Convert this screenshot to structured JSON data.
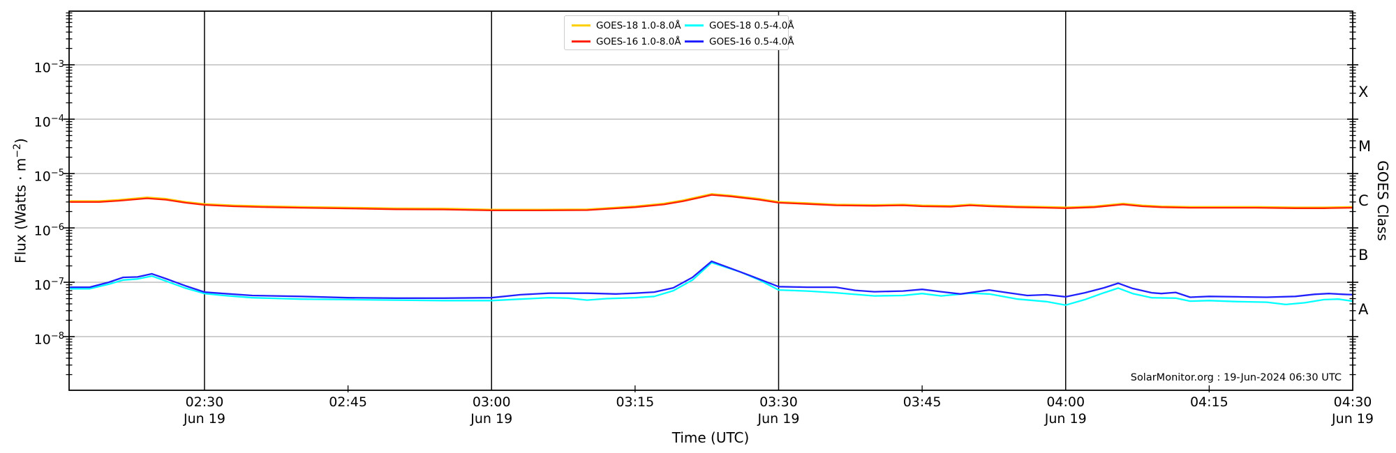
{
  "labels": {
    "xlabel": "Time (UTC)",
    "ylabel_left_prefix": "Flux (Watts · m",
    "ylabel_left_sup": "−2",
    "ylabel_left_suffix": ")",
    "ylabel_right": "GOES Class",
    "annotation": "SolarMonitor.org : 19-Jun-2024 06:30 UTC"
  },
  "chart_data": {
    "type": "line",
    "title": "",
    "xlabel": "Time (UTC)",
    "ylabel": "Flux (Watts · m^-2)",
    "ylabel_right": "GOES Class",
    "annotation": "SolarMonitor.org : 19-Jun-2024 06:30 UTC",
    "grid": "horizontal decade gridlines, vertical lines at half-hour marks",
    "legend_position": "upper center, 2 columns",
    "x_range_minutes": [
      135.85,
      270
    ],
    "y_range_exp": [
      -8.987,
      -2.013
    ],
    "x_ticks": [
      {
        "label": "02:30",
        "minutes": 150,
        "major": true,
        "date": "Jun 19"
      },
      {
        "label": "02:45",
        "minutes": 165,
        "major": false
      },
      {
        "label": "03:00",
        "minutes": 180,
        "major": true,
        "date": "Jun 19"
      },
      {
        "label": "03:15",
        "minutes": 195,
        "major": false
      },
      {
        "label": "03:30",
        "minutes": 210,
        "major": true,
        "date": "Jun 19"
      },
      {
        "label": "03:45",
        "minutes": 225,
        "major": false
      },
      {
        "label": "04:00",
        "minutes": 240,
        "major": true,
        "date": "Jun 19"
      },
      {
        "label": "04:15",
        "minutes": 255,
        "major": false
      },
      {
        "label": "04:30",
        "minutes": 270,
        "major": true,
        "date": "Jun 19"
      }
    ],
    "y_ticks": [
      {
        "base": "10",
        "sup": "−3",
        "exp": -3
      },
      {
        "base": "10",
        "sup": "−4",
        "exp": -4
      },
      {
        "base": "10",
        "sup": "−5",
        "exp": -5
      },
      {
        "base": "10",
        "sup": "−6",
        "exp": -6
      },
      {
        "base": "10",
        "sup": "−7",
        "exp": -7
      },
      {
        "base": "10",
        "sup": "−8",
        "exp": -8
      }
    ],
    "goes_classes": [
      {
        "label": "X",
        "exp": -3.5
      },
      {
        "label": "M",
        "exp": -4.5
      },
      {
        "label": "C",
        "exp": -5.5
      },
      {
        "label": "B",
        "exp": -6.5
      },
      {
        "label": "A",
        "exp": -7.5
      }
    ],
    "colors": {
      "grid": "#b0b0b0",
      "axis": "#000000",
      "vline": "#000000"
    },
    "series": [
      {
        "name": "GOES-18 1.0-8.0Å",
        "color": "#ffd000",
        "points": [
          [
            136,
            3.12e-06
          ],
          [
            139,
            3.12e-06
          ],
          [
            141,
            3.28e-06
          ],
          [
            144,
            3.64e-06
          ],
          [
            146,
            3.43e-06
          ],
          [
            148,
            3.02e-06
          ],
          [
            150,
            2.76e-06
          ],
          [
            153,
            2.6e-06
          ],
          [
            156,
            2.52e-06
          ],
          [
            160,
            2.44e-06
          ],
          [
            165,
            2.37e-06
          ],
          [
            170,
            2.29e-06
          ],
          [
            175,
            2.27e-06
          ],
          [
            180,
            2.18e-06
          ],
          [
            185,
            2.18e-06
          ],
          [
            190,
            2.2e-06
          ],
          [
            195,
            2.5e-06
          ],
          [
            198,
            2.81e-06
          ],
          [
            200,
            3.22e-06
          ],
          [
            202,
            3.85e-06
          ],
          [
            203,
            4.21e-06
          ],
          [
            205,
            3.95e-06
          ],
          [
            208,
            3.43e-06
          ],
          [
            210,
            3.02e-06
          ],
          [
            213,
            2.86e-06
          ],
          [
            216,
            2.7e-06
          ],
          [
            220,
            2.65e-06
          ],
          [
            223,
            2.7e-06
          ],
          [
            225,
            2.6e-06
          ],
          [
            228,
            2.55e-06
          ],
          [
            230,
            2.7e-06
          ],
          [
            232,
            2.6e-06
          ],
          [
            235,
            2.5e-06
          ],
          [
            238,
            2.44e-06
          ],
          [
            240,
            2.39e-06
          ],
          [
            243,
            2.5e-06
          ],
          [
            246,
            2.81e-06
          ],
          [
            248,
            2.6e-06
          ],
          [
            250,
            2.5e-06
          ],
          [
            253,
            2.44e-06
          ],
          [
            256,
            2.44e-06
          ],
          [
            260,
            2.44e-06
          ],
          [
            264,
            2.39e-06
          ],
          [
            267,
            2.39e-06
          ],
          [
            270,
            2.44e-06
          ]
        ]
      },
      {
        "name": "GOES-18 0.5-4.0Å",
        "color": "#00ffff",
        "points": [
          [
            136,
            7.6e-08
          ],
          [
            138,
            7.6e-08
          ],
          [
            140,
            9.2e-08
          ],
          [
            141.5,
            1.1e-07
          ],
          [
            143,
            1.15e-07
          ],
          [
            144.5,
            1.3e-07
          ],
          [
            146,
            1.05e-07
          ],
          [
            148,
            7.8e-08
          ],
          [
            150,
            6.2e-08
          ],
          [
            152,
            5.7e-08
          ],
          [
            155,
            5.2e-08
          ],
          [
            160,
            4.9e-08
          ],
          [
            165,
            4.8e-08
          ],
          [
            170,
            4.7e-08
          ],
          [
            175,
            4.6e-08
          ],
          [
            180,
            4.6e-08
          ],
          [
            183,
            4.9e-08
          ],
          [
            186,
            5.2e-08
          ],
          [
            188,
            5.1e-08
          ],
          [
            190,
            4.7e-08
          ],
          [
            192,
            5e-08
          ],
          [
            195,
            5.2e-08
          ],
          [
            197,
            5.5e-08
          ],
          [
            199,
            7e-08
          ],
          [
            201,
            1.1e-07
          ],
          [
            203,
            2.3e-07
          ],
          [
            206,
            1.55e-07
          ],
          [
            208,
            1.1e-07
          ],
          [
            210,
            7.2e-08
          ],
          [
            213,
            6.9e-08
          ],
          [
            216,
            6.4e-08
          ],
          [
            220,
            5.6e-08
          ],
          [
            223,
            5.7e-08
          ],
          [
            225,
            6.2e-08
          ],
          [
            227,
            5.6e-08
          ],
          [
            230,
            6.3e-08
          ],
          [
            232,
            6.1e-08
          ],
          [
            235,
            4.9e-08
          ],
          [
            238,
            4.4e-08
          ],
          [
            240,
            3.8e-08
          ],
          [
            242,
            4.8e-08
          ],
          [
            244,
            6.4e-08
          ],
          [
            245.5,
            7.8e-08
          ],
          [
            247,
            6.2e-08
          ],
          [
            249,
            5.2e-08
          ],
          [
            251.5,
            5.1e-08
          ],
          [
            253,
            4.5e-08
          ],
          [
            255,
            4.6e-08
          ],
          [
            258,
            4.4e-08
          ],
          [
            261,
            4.3e-08
          ],
          [
            263,
            3.9e-08
          ],
          [
            265,
            4.2e-08
          ],
          [
            267,
            4.8e-08
          ],
          [
            268.5,
            4.9e-08
          ],
          [
            270,
            4.5e-08
          ]
        ]
      },
      {
        "name": "GOES-16 1.0-8.0Å",
        "color": "#ff2000",
        "points": [
          [
            136,
            3e-06
          ],
          [
            139,
            3e-06
          ],
          [
            141,
            3.15e-06
          ],
          [
            144,
            3.5e-06
          ],
          [
            146,
            3.3e-06
          ],
          [
            148,
            2.9e-06
          ],
          [
            150,
            2.65e-06
          ],
          [
            153,
            2.5e-06
          ],
          [
            156,
            2.42e-06
          ],
          [
            160,
            2.35e-06
          ],
          [
            165,
            2.28e-06
          ],
          [
            170,
            2.2e-06
          ],
          [
            175,
            2.18e-06
          ],
          [
            180,
            2.1e-06
          ],
          [
            185,
            2.1e-06
          ],
          [
            190,
            2.12e-06
          ],
          [
            195,
            2.4e-06
          ],
          [
            198,
            2.7e-06
          ],
          [
            200,
            3.1e-06
          ],
          [
            202,
            3.7e-06
          ],
          [
            203,
            4.05e-06
          ],
          [
            205,
            3.8e-06
          ],
          [
            208,
            3.3e-06
          ],
          [
            210,
            2.9e-06
          ],
          [
            213,
            2.75e-06
          ],
          [
            216,
            2.6e-06
          ],
          [
            220,
            2.55e-06
          ],
          [
            223,
            2.6e-06
          ],
          [
            225,
            2.5e-06
          ],
          [
            228,
            2.45e-06
          ],
          [
            230,
            2.6e-06
          ],
          [
            232,
            2.5e-06
          ],
          [
            235,
            2.4e-06
          ],
          [
            238,
            2.35e-06
          ],
          [
            240,
            2.3e-06
          ],
          [
            243,
            2.4e-06
          ],
          [
            246,
            2.7e-06
          ],
          [
            248,
            2.5e-06
          ],
          [
            250,
            2.4e-06
          ],
          [
            253,
            2.35e-06
          ],
          [
            256,
            2.35e-06
          ],
          [
            260,
            2.35e-06
          ],
          [
            264,
            2.3e-06
          ],
          [
            267,
            2.3e-06
          ],
          [
            270,
            2.35e-06
          ]
        ]
      },
      {
        "name": "GOES-16 0.5-4.0Å",
        "color": "#2020ff",
        "points": [
          [
            136,
            8.1e-08
          ],
          [
            138,
            8.1e-08
          ],
          [
            140,
            1e-07
          ],
          [
            141.5,
            1.23e-07
          ],
          [
            143,
            1.25e-07
          ],
          [
            144.5,
            1.43e-07
          ],
          [
            146,
            1.16e-07
          ],
          [
            148,
            8.6e-08
          ],
          [
            150,
            6.6e-08
          ],
          [
            152,
            6.2e-08
          ],
          [
            155,
            5.7e-08
          ],
          [
            160,
            5.5e-08
          ],
          [
            165,
            5.2e-08
          ],
          [
            170,
            5.1e-08
          ],
          [
            175,
            5.1e-08
          ],
          [
            180,
            5.2e-08
          ],
          [
            183,
            5.9e-08
          ],
          [
            186,
            6.3e-08
          ],
          [
            190,
            6.3e-08
          ],
          [
            193,
            6.1e-08
          ],
          [
            195,
            6.3e-08
          ],
          [
            197,
            6.6e-08
          ],
          [
            199,
            7.9e-08
          ],
          [
            201,
            1.23e-07
          ],
          [
            203,
            2.43e-07
          ],
          [
            205,
            1.8e-07
          ],
          [
            207,
            1.33e-07
          ],
          [
            210,
            8.3e-08
          ],
          [
            213,
            8.1e-08
          ],
          [
            216,
            8.1e-08
          ],
          [
            218,
            7.1e-08
          ],
          [
            220,
            6.7e-08
          ],
          [
            223,
            6.9e-08
          ],
          [
            225,
            7.4e-08
          ],
          [
            227,
            6.7e-08
          ],
          [
            229,
            6.1e-08
          ],
          [
            232,
            7.2e-08
          ],
          [
            234,
            6.4e-08
          ],
          [
            236,
            5.7e-08
          ],
          [
            238,
            5.9e-08
          ],
          [
            240,
            5.4e-08
          ],
          [
            242,
            6.4e-08
          ],
          [
            244,
            7.9e-08
          ],
          [
            245.5,
            9.6e-08
          ],
          [
            247,
            7.7e-08
          ],
          [
            249,
            6.4e-08
          ],
          [
            250,
            6.2e-08
          ],
          [
            251.5,
            6.5e-08
          ],
          [
            253,
            5.3e-08
          ],
          [
            255,
            5.5e-08
          ],
          [
            258,
            5.4e-08
          ],
          [
            261,
            5.3e-08
          ],
          [
            264,
            5.5e-08
          ],
          [
            266,
            6e-08
          ],
          [
            267.5,
            6.2e-08
          ],
          [
            269,
            6e-08
          ],
          [
            270,
            5.9e-08
          ]
        ]
      }
    ]
  }
}
